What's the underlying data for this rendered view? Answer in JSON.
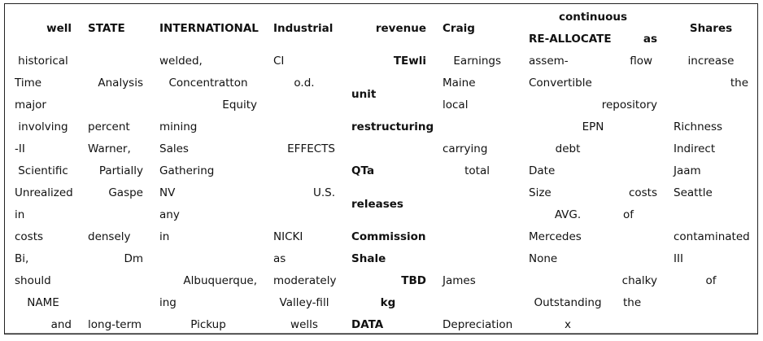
{
  "header": {
    "well": "well",
    "state": "STATE",
    "international": "INTERNATIONAL",
    "industrial": "Industrial",
    "revenue": "revenue",
    "craig": "Craig",
    "continuous": "continuous",
    "reallocate": "RE-ALLOCATE",
    "as": "as",
    "shares": "Shares"
  },
  "col1": [
    "historical",
    "Time",
    "major",
    "involving",
    "-II",
    "Scientific",
    "Unrealized",
    "in",
    "costs",
    "Bi,",
    "should",
    "NAME",
    "and"
  ],
  "col2": [
    "Analysis",
    "percent",
    "Warner,",
    "Partially",
    "Gaspe",
    "densely",
    "Dm",
    "long-term"
  ],
  "col3": [
    "welded,",
    "Concentratton",
    "Equity",
    "mining",
    "Sales",
    "Gathering",
    "NV",
    "any",
    "in",
    "Albuquerque,",
    "ing",
    "Pickup"
  ],
  "col4": [
    "CI",
    "o.d.",
    "EFFECTS",
    "U.S.",
    "NICKI",
    "as",
    "moderately",
    "Valley-fill",
    "wells"
  ],
  "col5": [
    "TEwli",
    "unit",
    "restructuring",
    "QTa",
    "releases",
    "Commission",
    "Shale",
    "TBD",
    "kg",
    "DATA"
  ],
  "col6": [
    "Earnings",
    "Maine",
    "local",
    "carrying",
    "total",
    "James",
    "Depreciation"
  ],
  "col7": [
    "assem-",
    "flow",
    "Convertible",
    "repository",
    "EPN",
    "debt",
    "Date",
    "Size",
    "costs",
    "AVG.",
    "of",
    "Mercedes",
    "None",
    "chalky",
    "Outstanding",
    "the",
    "x"
  ],
  "col8": [
    "increase",
    "the",
    "Richness",
    "Indirect",
    "Jaam",
    "Seattle",
    "contaminated",
    "III",
    "of"
  ]
}
